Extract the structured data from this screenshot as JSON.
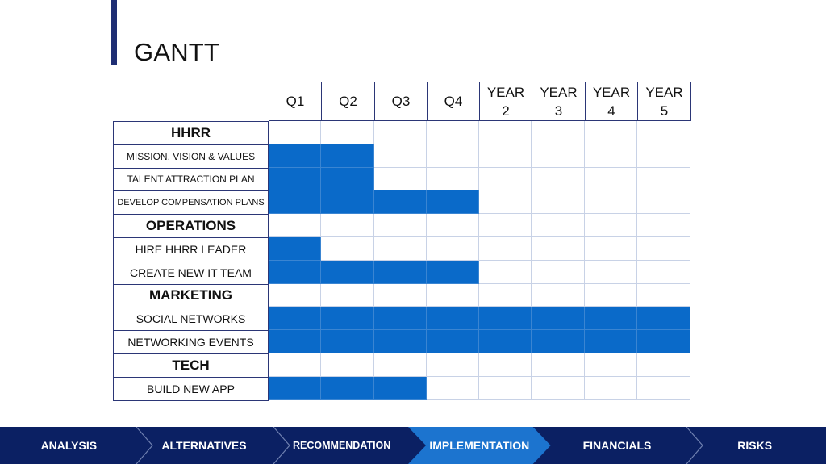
{
  "slide": {
    "title": "GANTT"
  },
  "columns": [
    "Q1",
    "Q2",
    "Q3",
    "Q4",
    "YEAR\n2",
    "YEAR\n3",
    "YEAR\n4",
    "YEAR\n5"
  ],
  "rows": [
    {
      "label": "HHRR",
      "type": "section",
      "filled": []
    },
    {
      "label": "MISSION, VISION & VALUES",
      "type": "task",
      "size": "small",
      "filled": [
        0,
        1
      ]
    },
    {
      "label": "TALENT ATTRACTION PLAN",
      "type": "task",
      "size": "small",
      "filled": [
        0,
        1
      ]
    },
    {
      "label": "DEVELOP COMPENSATION PLANS",
      "type": "task",
      "size": "tiny",
      "filled": [
        0,
        1,
        2,
        3
      ]
    },
    {
      "label": "OPERATIONS",
      "type": "section",
      "filled": []
    },
    {
      "label": "HIRE HHRR LEADER",
      "type": "task",
      "filled": [
        0
      ]
    },
    {
      "label": "CREATE NEW IT TEAM",
      "type": "task",
      "filled": [
        0,
        1,
        2,
        3
      ]
    },
    {
      "label": "MARKETING",
      "type": "section",
      "filled": []
    },
    {
      "label": "SOCIAL NETWORKS",
      "type": "task",
      "filled": [
        0,
        1,
        2,
        3,
        4,
        5,
        6,
        7
      ]
    },
    {
      "label": "NETWORKING EVENTS",
      "type": "task",
      "filled": [
        0,
        1,
        2,
        3,
        4,
        5,
        6,
        7
      ]
    },
    {
      "label": "TECH",
      "type": "section",
      "filled": []
    },
    {
      "label": "BUILD NEW APP",
      "type": "task",
      "filled": [
        0,
        1,
        2
      ]
    }
  ],
  "nav": {
    "items": [
      "ANALYSIS",
      "ALTERNATIVES",
      "RECOMMENDATION",
      "IMPLEMENTATION",
      "FINANCIALS",
      "RISKS"
    ],
    "active": "IMPLEMENTATION"
  },
  "colors": {
    "accent": "#0a6ac9",
    "nav_bg": "#0b2063",
    "nav_active": "#1c74cf",
    "border": "#2b3676"
  }
}
